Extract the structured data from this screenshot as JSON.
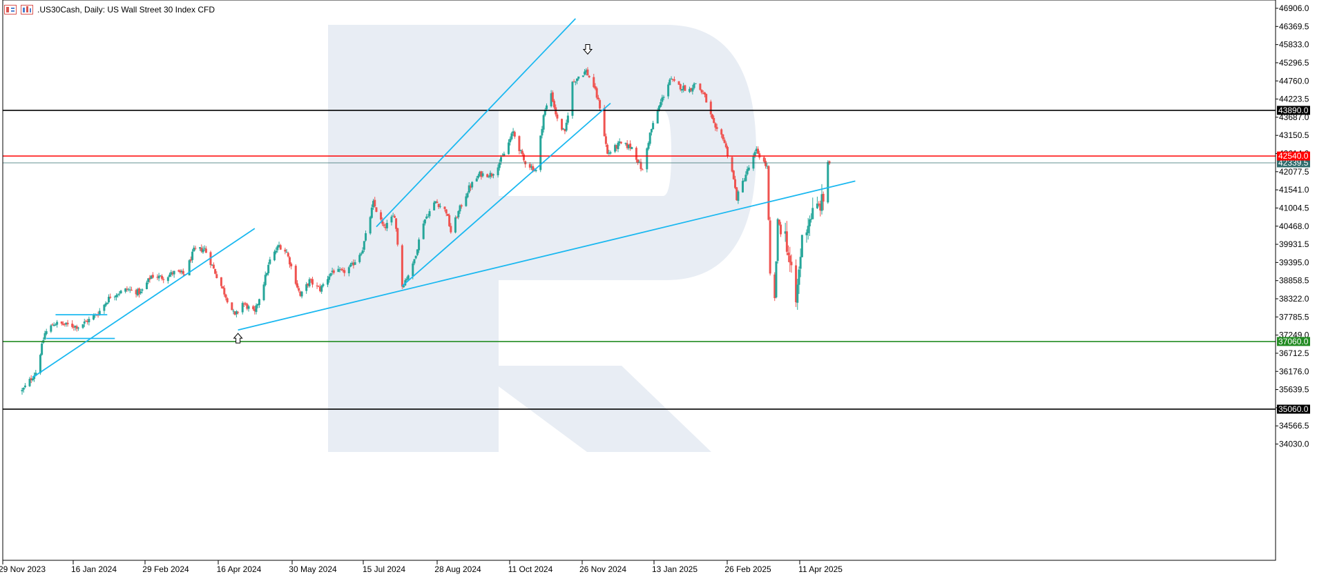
{
  "header": {
    "title": ".US30Cash, Daily:  US Wall Street 30 Index CFD",
    "icon_1": "candlestick-window-icon",
    "icon_2": "chart-type-icon"
  },
  "colors": {
    "bull": "#26a69a",
    "bear": "#ef5350",
    "trendline": "#1ab8f0",
    "resistance": "#ff0000",
    "support": "#228b22",
    "level": "#000000",
    "current_price": "#2f6b6b",
    "watermark": "#e8edf4"
  },
  "chart_data": {
    "type": "candlestick",
    "title": ".US30Cash, Daily:  US Wall Street 30 Index CFD",
    "xlabel": "",
    "ylabel": "",
    "ylim": [
      33700,
      47100
    ],
    "grid": false,
    "x_ticks": [
      "29 Nov 2023",
      "16 Jan 2024",
      "29 Feb 2024",
      "16 Apr 2024",
      "30 May 2024",
      "15 Jul 2024",
      "28 Aug 2024",
      "11 Oct 2024",
      "26 Nov 2024",
      "13 Jan 2025",
      "26 Feb 2025",
      "11 Apr 2025"
    ],
    "y_ticks": [
      "46906.0",
      "46369.5",
      "45833.0",
      "45296.5",
      "44760.0",
      "44223.5",
      "43687.0",
      "43150.5",
      "42614.0",
      "42077.5",
      "41541.0",
      "41004.5",
      "40468.0",
      "39931.5",
      "39395.0",
      "38858.5",
      "38322.0",
      "37785.5",
      "37249.0",
      "36712.5",
      "36176.0",
      "35639.5",
      "35103.0",
      "34566.5",
      "34030.0"
    ],
    "anchors": [
      [
        "2023-11-29",
        35600
      ],
      [
        "2023-12-08",
        36150
      ],
      [
        "2023-12-14",
        37300
      ],
      [
        "2023-12-20",
        37600
      ],
      [
        "2024-01-05",
        37500
      ],
      [
        "2024-01-12",
        37700
      ],
      [
        "2024-01-18",
        37900
      ],
      [
        "2024-01-26",
        38400
      ],
      [
        "2024-02-06",
        38600
      ],
      [
        "2024-02-15",
        38500
      ],
      [
        "2024-02-22",
        39000
      ],
      [
        "2024-03-01",
        38950
      ],
      [
        "2024-03-08",
        39100
      ],
      [
        "2024-03-15",
        39050
      ],
      [
        "2024-03-21",
        39750
      ],
      [
        "2024-03-28",
        39800
      ],
      [
        "2024-04-05",
        39000
      ],
      [
        "2024-04-12",
        38300
      ],
      [
        "2024-04-17",
        37800
      ],
      [
        "2024-04-22",
        38200
      ],
      [
        "2024-04-30",
        37900
      ],
      [
        "2024-05-06",
        38800
      ],
      [
        "2024-05-10",
        39450
      ],
      [
        "2024-05-16",
        39900
      ],
      [
        "2024-05-21",
        39700
      ],
      [
        "2024-05-30",
        38400
      ],
      [
        "2024-06-05",
        38850
      ],
      [
        "2024-06-12",
        38600
      ],
      [
        "2024-06-20",
        39150
      ],
      [
        "2024-06-27",
        39100
      ],
      [
        "2024-07-03",
        39300
      ],
      [
        "2024-07-10",
        39800
      ],
      [
        "2024-07-17",
        41150
      ],
      [
        "2024-07-24",
        40400
      ],
      [
        "2024-07-31",
        40800
      ],
      [
        "2024-08-05",
        38700
      ],
      [
        "2024-08-12",
        39300
      ],
      [
        "2024-08-19",
        40600
      ],
      [
        "2024-08-27",
        41200
      ],
      [
        "2024-09-03",
        40900
      ],
      [
        "2024-09-06",
        40300
      ],
      [
        "2024-09-12",
        41000
      ],
      [
        "2024-09-18",
        41600
      ],
      [
        "2024-09-25",
        42000
      ],
      [
        "2024-10-03",
        42000
      ],
      [
        "2024-10-10",
        42500
      ],
      [
        "2024-10-17",
        43250
      ],
      [
        "2024-10-24",
        42400
      ],
      [
        "2024-11-01",
        42100
      ],
      [
        "2024-11-06",
        43750
      ],
      [
        "2024-11-11",
        44400
      ],
      [
        "2024-11-15",
        43600
      ],
      [
        "2024-11-20",
        43200
      ],
      [
        "2024-11-25",
        44700
      ],
      [
        "2024-11-29",
        44900
      ],
      [
        "2024-12-04",
        45050
      ],
      [
        "2024-12-09",
        44600
      ],
      [
        "2024-12-13",
        44000
      ],
      [
        "2024-12-18",
        42600
      ],
      [
        "2024-12-26",
        42900
      ],
      [
        "2025-01-03",
        42800
      ],
      [
        "2025-01-10",
        42100
      ],
      [
        "2025-01-15",
        43200
      ],
      [
        "2025-01-21",
        44000
      ],
      [
        "2025-01-28",
        44800
      ],
      [
        "2025-02-03",
        44600
      ],
      [
        "2025-02-10",
        44500
      ],
      [
        "2025-02-14",
        44700
      ],
      [
        "2025-02-20",
        44300
      ],
      [
        "2025-02-27",
        43300
      ],
      [
        "2025-03-04",
        43100
      ],
      [
        "2025-03-10",
        42100
      ],
      [
        "2025-03-13",
        41300
      ],
      [
        "2025-03-19",
        42000
      ],
      [
        "2025-03-26",
        42700
      ],
      [
        "2025-04-02",
        42200
      ],
      [
        "2025-04-04",
        39000
      ],
      [
        "2025-04-07",
        38300
      ],
      [
        "2025-04-09",
        40600
      ],
      [
        "2025-04-14",
        40200
      ],
      [
        "2025-04-21",
        38200
      ],
      [
        "2025-04-25",
        40100
      ],
      [
        "2025-05-01",
        40800
      ],
      [
        "2025-05-07",
        41100
      ],
      [
        "2025-05-09",
        41250
      ],
      [
        "2025-05-12",
        42400
      ],
      [
        "2025-05-13",
        42340
      ]
    ]
  },
  "price_levels": [
    {
      "id": "resistance-line",
      "price": "43890.0",
      "kind": "level"
    },
    {
      "id": "red-resistance-line",
      "price": "42540.0",
      "kind": "resistance"
    },
    {
      "id": "current-price-line",
      "price": "42339.5",
      "kind": "current_price"
    },
    {
      "id": "support-line",
      "price": "37060.0",
      "kind": "support"
    },
    {
      "id": "lower-level-line",
      "price": "35060.0",
      "kind": "level"
    }
  ],
  "trendlines": [
    {
      "from": [
        "2023-12-06",
        36000
      ],
      "to": [
        "2024-04-30",
        40400
      ]
    },
    {
      "from": [
        "2024-04-19",
        37400
      ],
      "to": [
        "2025-05-30",
        41800
      ]
    },
    {
      "from": [
        "2024-07-19",
        40450
      ],
      "to": [
        "2024-11-27",
        46600
      ]
    },
    {
      "from": [
        "2024-08-05",
        38700
      ],
      "to": [
        "2024-12-20",
        44100
      ]
    },
    {
      "from": [
        "2023-12-21",
        37850
      ],
      "to": [
        "2024-01-24",
        37850
      ]
    },
    {
      "from": [
        "2023-12-15",
        37150
      ],
      "to": [
        "2024-01-29",
        37150
      ]
    }
  ],
  "arrows": [
    {
      "date": "2024-04-19",
      "price": 37300,
      "dir": "up"
    },
    {
      "date": "2024-12-05",
      "price": 45550,
      "dir": "down"
    }
  ]
}
